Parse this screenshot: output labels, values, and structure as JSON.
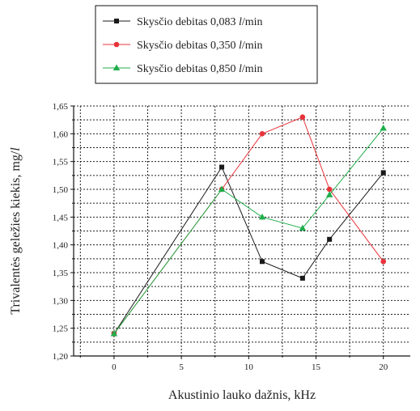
{
  "chart_data": {
    "type": "line",
    "title": "",
    "xlabel": "Akustinio lauko dažnis, kHz",
    "ylabel": "Trivalentės geležies kiekis, mg/l",
    "xlim": [
      -3,
      22
    ],
    "ylim": [
      1.2,
      1.65
    ],
    "xticks": [
      0,
      5,
      10,
      15,
      20
    ],
    "xtick_labels": [
      "0",
      "5",
      "10",
      "15",
      "20"
    ],
    "yticks": [
      1.2,
      1.25,
      1.3,
      1.35,
      1.4,
      1.45,
      1.5,
      1.55,
      1.6,
      1.65
    ],
    "ytick_labels": [
      "1,20",
      "1,25",
      "1,30",
      "1,35",
      "1,40",
      "1,45",
      "1,50",
      "1,55",
      "1,60",
      "1,65"
    ],
    "grid": true,
    "legend_position": "top-center",
    "series": [
      {
        "name_prefix": "Skysčio debitas 0,083 ",
        "name_unit": "l",
        "name_suffix": "/min",
        "color": "#1a1a1a",
        "marker": "square",
        "x": [
          0,
          8,
          11,
          14,
          16,
          20
        ],
        "y": [
          1.24,
          1.54,
          1.37,
          1.34,
          1.41,
          1.53
        ]
      },
      {
        "name_prefix": "Skysčio debitas 0,350 ",
        "name_unit": "l",
        "name_suffix": "/min",
        "color": "#e8333a",
        "marker": "circle",
        "x": [
          0,
          8,
          11,
          14,
          16,
          20
        ],
        "y": [
          1.24,
          1.5,
          1.6,
          1.63,
          1.5,
          1.37
        ]
      },
      {
        "name_prefix": "Skysčio debitas 0,850 ",
        "name_unit": "l",
        "name_suffix": "/min",
        "color": "#1fae4b",
        "marker": "triangle",
        "x": [
          0,
          8,
          11,
          14,
          16,
          20
        ],
        "y": [
          1.24,
          1.5,
          1.45,
          1.43,
          1.49,
          1.61
        ]
      }
    ]
  }
}
